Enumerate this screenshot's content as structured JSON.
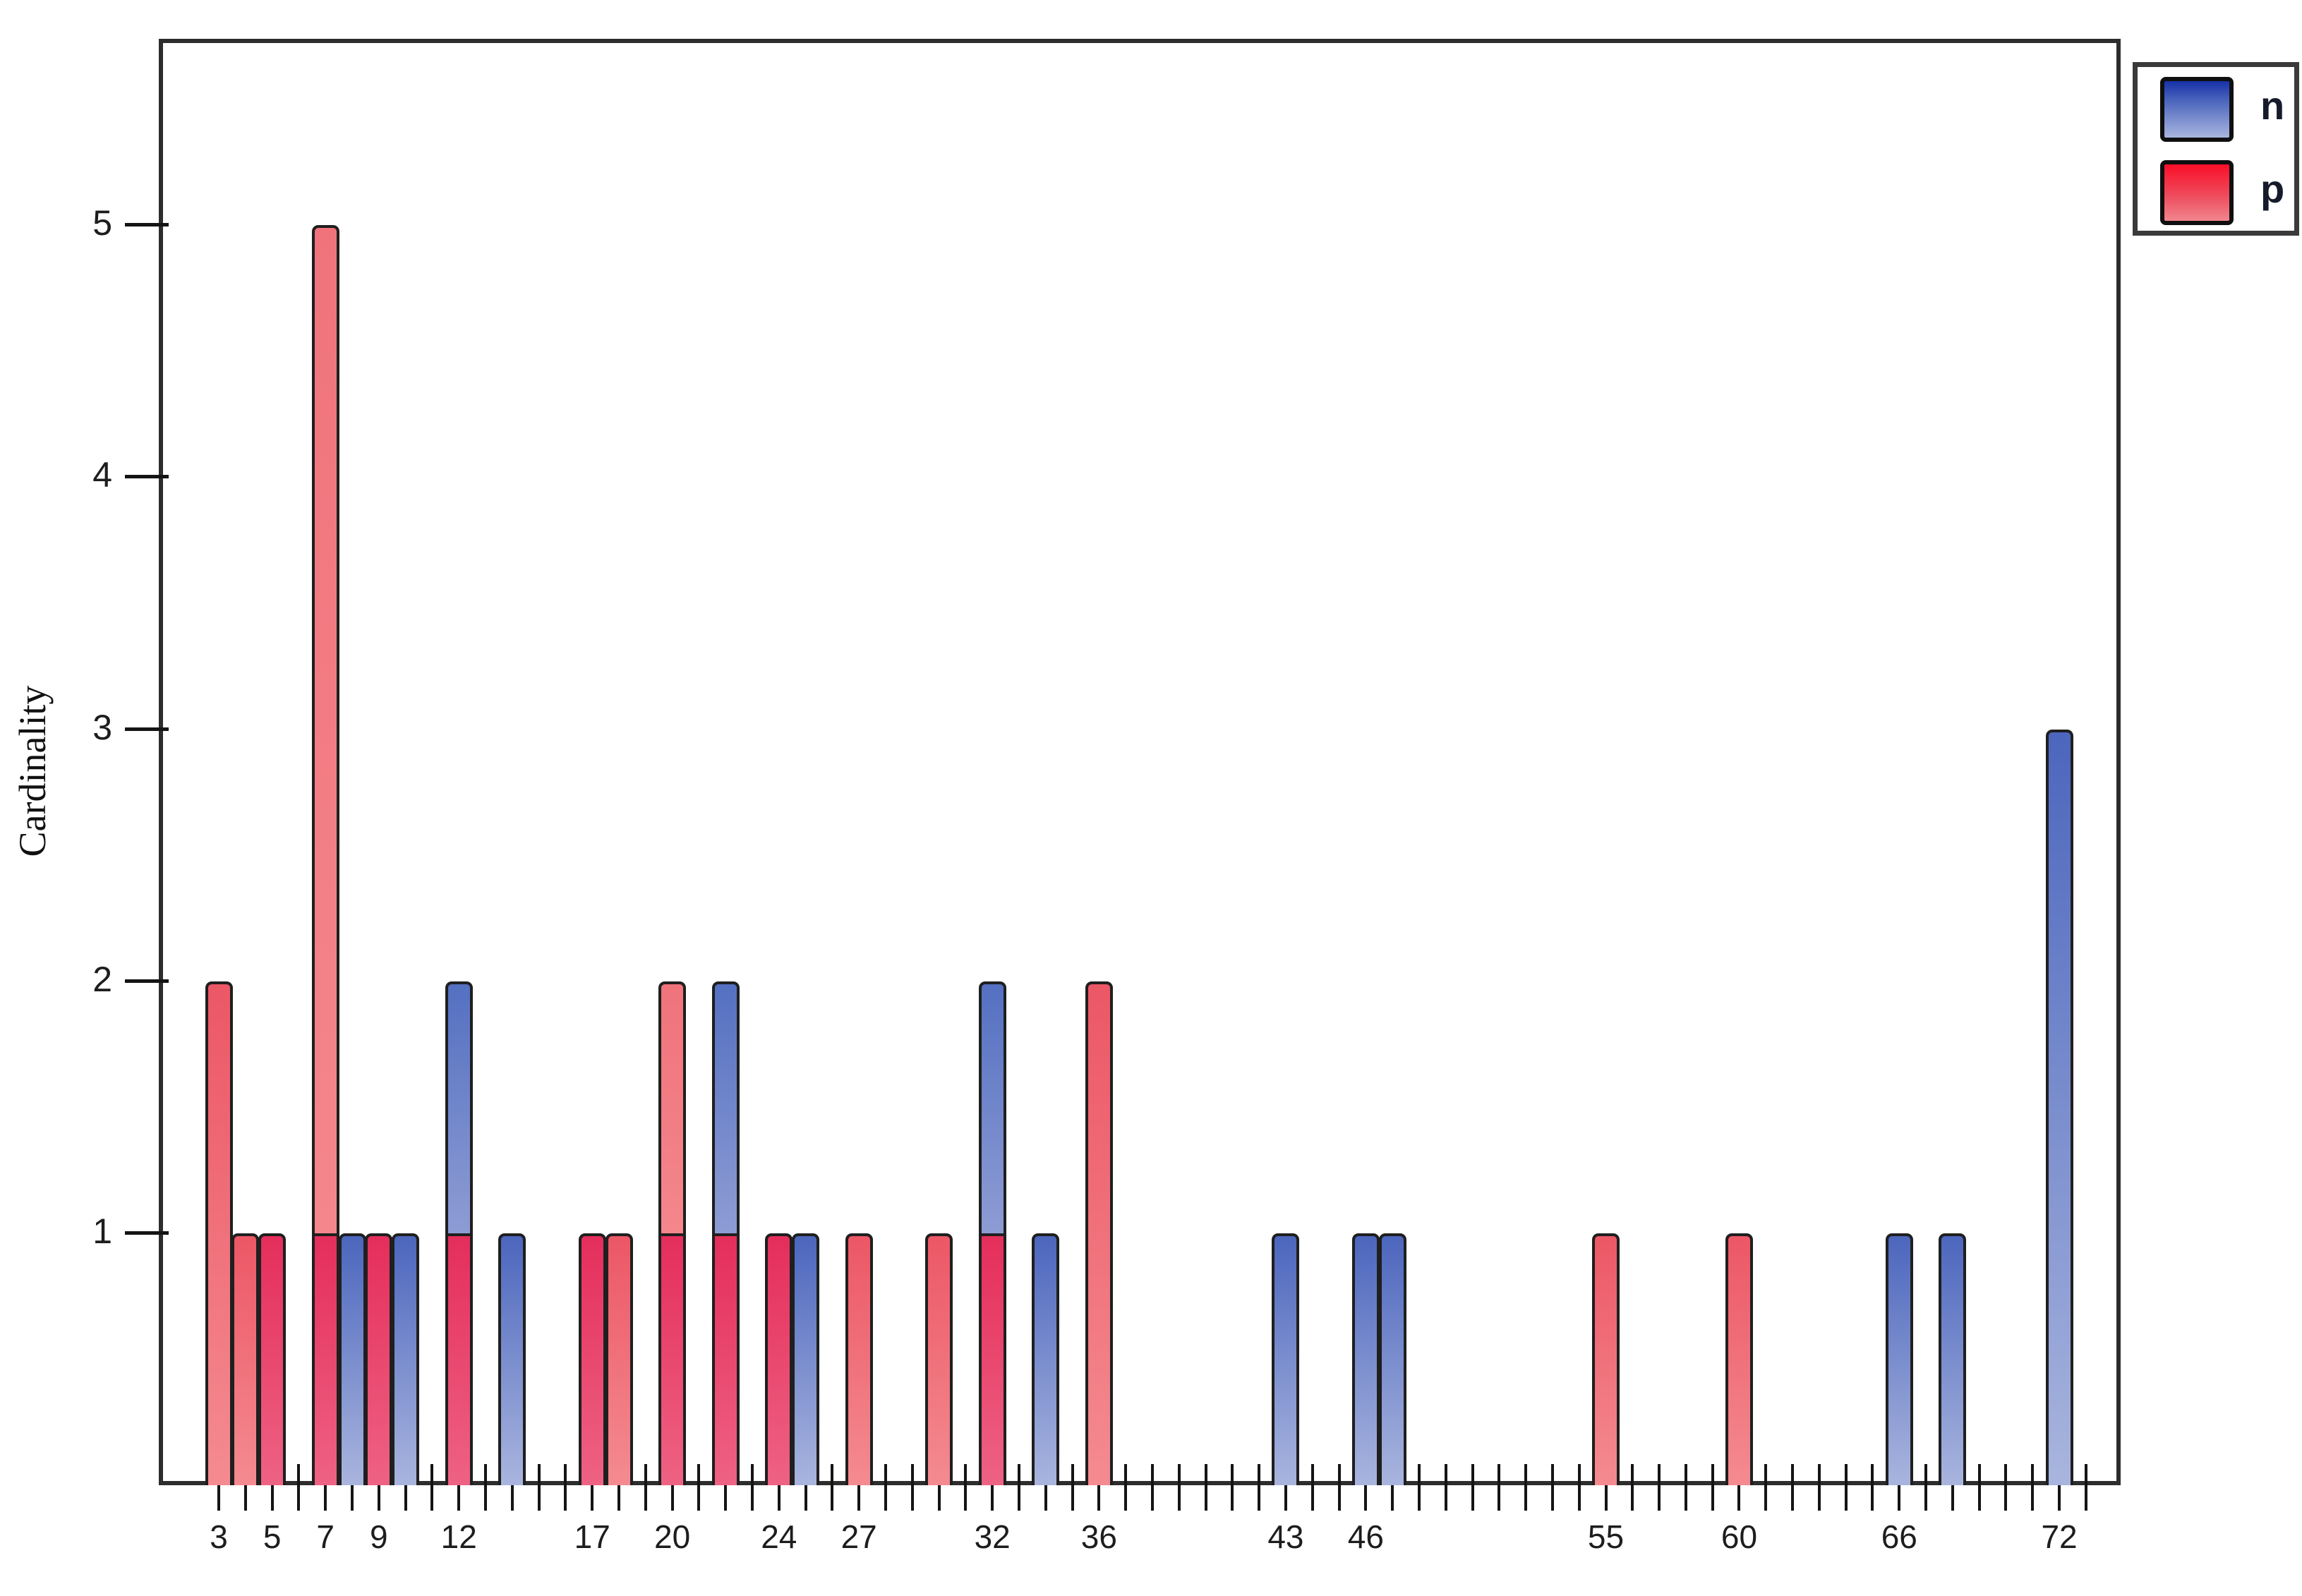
{
  "chart_data": {
    "type": "bar",
    "title": "",
    "xlabel": "",
    "ylabel": "Cardinality",
    "grid": false,
    "xlim": [
      0.75,
      74.3
    ],
    "ylim": [
      0,
      5.74
    ],
    "x_tick_min": 3,
    "x_tick_max": 73,
    "x_labeled_ticks": [
      3,
      5,
      7,
      9,
      12,
      17,
      20,
      24,
      27,
      32,
      36,
      43,
      46,
      55,
      60,
      66,
      72
    ],
    "y_ticks": [
      1,
      2,
      3,
      4,
      5
    ],
    "legend": {
      "position": "top-right",
      "entries": [
        {
          "label": "n",
          "color": "#2a46b8"
        },
        {
          "label": "p",
          "color": "#f0233f"
        }
      ]
    },
    "series": [
      {
        "name": "n",
        "points": [
          [
            5,
            1
          ],
          [
            7,
            1
          ],
          [
            8,
            1
          ],
          [
            9,
            1
          ],
          [
            10,
            1
          ],
          [
            12,
            2
          ],
          [
            14,
            1
          ],
          [
            17,
            1
          ],
          [
            20,
            1
          ],
          [
            22,
            2
          ],
          [
            24,
            1
          ],
          [
            25,
            1
          ],
          [
            32,
            2
          ],
          [
            34,
            1
          ],
          [
            43,
            1
          ],
          [
            46,
            1
          ],
          [
            47,
            1
          ],
          [
            66,
            1
          ],
          [
            68,
            1
          ],
          [
            72,
            3
          ]
        ]
      },
      {
        "name": "p",
        "points": [
          [
            3,
            2
          ],
          [
            4,
            1
          ],
          [
            5,
            1
          ],
          [
            7,
            5
          ],
          [
            9,
            1
          ],
          [
            12,
            1
          ],
          [
            17,
            1
          ],
          [
            18,
            1
          ],
          [
            20,
            2
          ],
          [
            22,
            1
          ],
          [
            24,
            1
          ],
          [
            27,
            1
          ],
          [
            30,
            1
          ],
          [
            32,
            1
          ],
          [
            36,
            2
          ],
          [
            55,
            1
          ],
          [
            60,
            1
          ]
        ]
      }
    ],
    "colors": {
      "n_fill": "#7b8fd0",
      "p_fill": "#ee6270",
      "overlap_fill": "#e63460",
      "axis": "#2d2d2d",
      "tick": "#141414",
      "label_text": "#1d1d1d"
    },
    "render_notes": "overlapping (not stacked) bars; p drawn in front of n"
  }
}
